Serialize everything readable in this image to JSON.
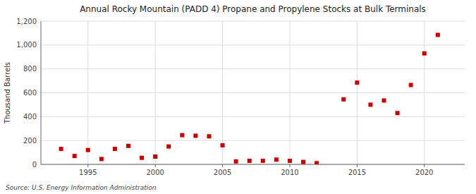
{
  "chart_data": {
    "type": "scatter",
    "title": "Annual Rocky Mountain (PADD 4) Propane and Propylene Stocks at Bulk Terminals",
    "ylabel": "Thousand Barrels",
    "annotations": [
      "Source: U.S. Energy Information Administration"
    ],
    "x": [
      1993,
      1994,
      1995,
      1996,
      1997,
      1998,
      1999,
      2000,
      2001,
      2002,
      2003,
      2004,
      2005,
      2006,
      2007,
      2008,
      2009,
      2010,
      2011,
      2012,
      2014,
      2015,
      2016,
      2017,
      2018,
      2019,
      2020,
      2021
    ],
    "values": [
      130,
      70,
      120,
      45,
      130,
      155,
      55,
      65,
      150,
      245,
      240,
      235,
      160,
      25,
      30,
      30,
      40,
      30,
      20,
      10,
      545,
      685,
      500,
      535,
      430,
      665,
      930,
      1085
    ],
    "color": "#cc0000",
    "marker": "square",
    "xlim": [
      1991.5,
      2023
    ],
    "xticks": [
      1995,
      2000,
      2005,
      2010,
      2015,
      2020
    ],
    "ylim": [
      0,
      1200
    ],
    "yticks": [
      0,
      200,
      400,
      600,
      800,
      {
        "value": 1000,
        "label": "1,000"
      },
      {
        "value": 1200,
        "label": "1,200"
      }
    ],
    "grid": true
  }
}
